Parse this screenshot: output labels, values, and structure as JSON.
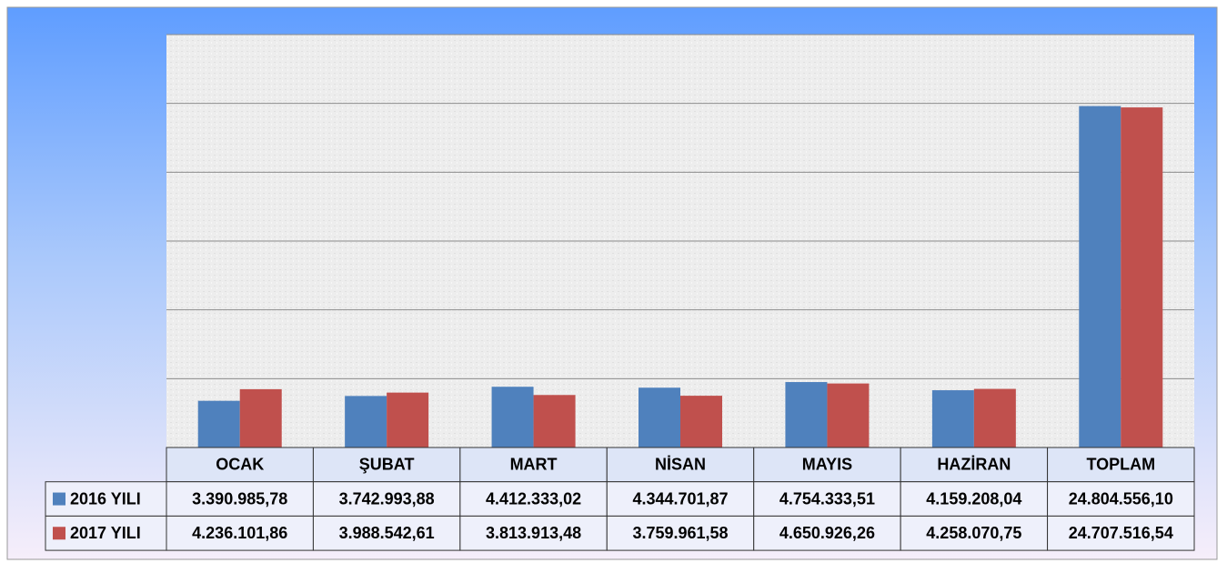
{
  "chart_data": {
    "type": "bar",
    "categories": [
      "OCAK",
      "ŞUBAT",
      "MART",
      "NİSAN",
      "MAYIS",
      "HAZİRAN",
      "TOPLAM"
    ],
    "series": [
      {
        "name": "2016 YILI",
        "color": "#4f81bd",
        "values": [
          3390985.78,
          3742993.88,
          4412333.02,
          4344701.87,
          4754333.51,
          4159208.04,
          24804556.1
        ],
        "value_labels": [
          "3.390.985,78",
          "3.742.993,88",
          "4.412.333,02",
          "4.344.701,87",
          "4.754.333,51",
          "4.159.208,04",
          "24.804.556,10"
        ]
      },
      {
        "name": "2017 YILI",
        "color": "#c0504d",
        "values": [
          4236101.86,
          3988542.61,
          3813913.48,
          3759961.58,
          4650926.26,
          4258070.75,
          24707516.54
        ],
        "value_labels": [
          "4.236.101,86",
          "3.988.542,61",
          "3.813.913,48",
          "3.759.961,58",
          "4.650.926,26",
          "4.258.070,75",
          "24.707.516,54"
        ]
      }
    ],
    "ylim": [
      0,
      30000000
    ],
    "yticks": [
      0,
      5000000,
      10000000,
      15000000,
      20000000,
      25000000,
      30000000
    ],
    "grid": true
  }
}
